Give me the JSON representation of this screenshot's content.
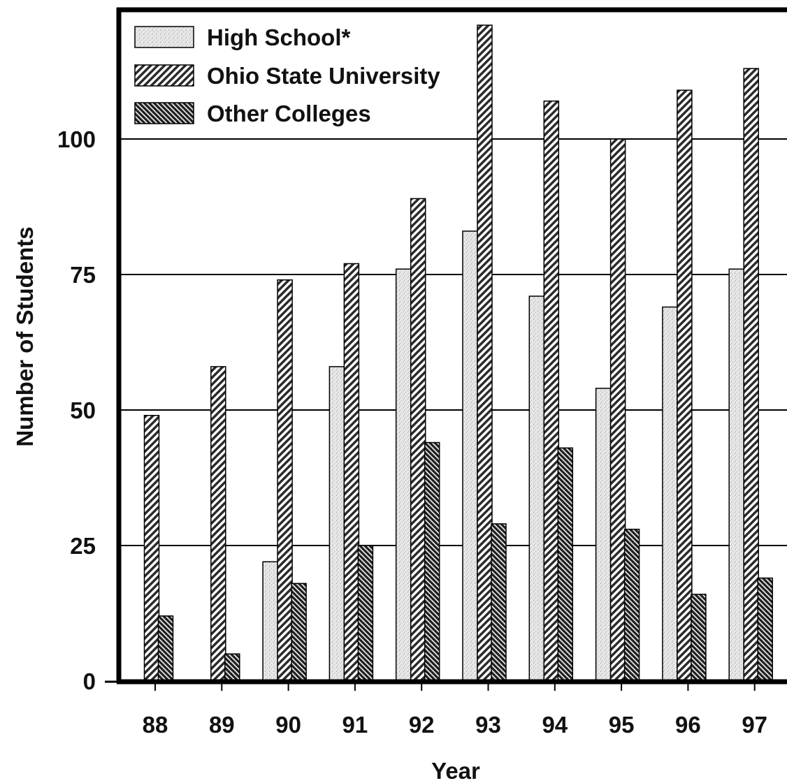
{
  "chart_data": {
    "type": "bar",
    "title": "",
    "xlabel": "Year",
    "ylabel": "Number of Students",
    "categories": [
      "88",
      "89",
      "90",
      "91",
      "92",
      "93",
      "94",
      "95",
      "96",
      "97"
    ],
    "series": [
      {
        "name": "High School*",
        "values": [
          0,
          0,
          22,
          58,
          76,
          83,
          71,
          54,
          69,
          76
        ],
        "pattern": "light-stipple"
      },
      {
        "name": "Ohio State University",
        "values": [
          49,
          58,
          74,
          77,
          89,
          121,
          107,
          100,
          109,
          113
        ],
        "pattern": "diagonal-hatch"
      },
      {
        "name": "Other Colleges",
        "values": [
          12,
          5,
          18,
          25,
          44,
          29,
          43,
          28,
          16,
          19
        ],
        "pattern": "dense-back-hatch"
      }
    ],
    "yticks": [
      0,
      25,
      50,
      75,
      100
    ],
    "ylim": [
      0,
      125
    ],
    "grid": "horizontal",
    "legend_position": "top-left",
    "colors": {
      "frame": "#000000",
      "grid": "#000000",
      "high_school": "#e4e4e4",
      "ohio_state": "#6a6a6a",
      "other_colleges": "#555555"
    }
  }
}
